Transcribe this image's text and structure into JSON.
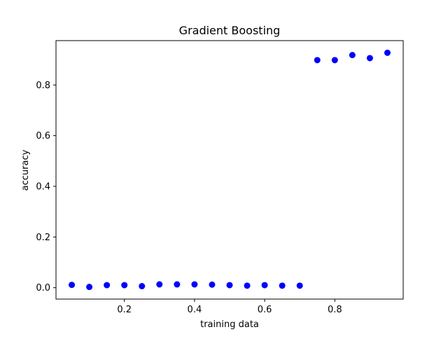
{
  "chart_data": {
    "type": "scatter",
    "title": "Gradient Boosting",
    "xlabel": "training data",
    "ylabel": "accuracy",
    "xlim": [
      0.005,
      0.995
    ],
    "ylim": [
      -0.045,
      0.975
    ],
    "grid": false,
    "xticks": [
      {
        "value": 0.2,
        "label": "0.2"
      },
      {
        "value": 0.4,
        "label": "0.4"
      },
      {
        "value": 0.6,
        "label": "0.6"
      },
      {
        "value": 0.8,
        "label": "0.8"
      }
    ],
    "yticks": [
      {
        "value": 0.0,
        "label": "0.0"
      },
      {
        "value": 0.2,
        "label": "0.2"
      },
      {
        "value": 0.4,
        "label": "0.4"
      },
      {
        "value": 0.6,
        "label": "0.6"
      },
      {
        "value": 0.8,
        "label": "0.8"
      }
    ],
    "series": [
      {
        "color": "#0000ff",
        "marker": "circle",
        "x": [
          0.05,
          0.1,
          0.15,
          0.2,
          0.25,
          0.3,
          0.35,
          0.4,
          0.45,
          0.5,
          0.55,
          0.6,
          0.65,
          0.7,
          0.75,
          0.8,
          0.85,
          0.9,
          0.95
        ],
        "y": [
          0.011,
          0.003,
          0.01,
          0.01,
          0.006,
          0.013,
          0.013,
          0.013,
          0.012,
          0.01,
          0.008,
          0.01,
          0.008,
          0.008,
          0.898,
          0.898,
          0.918,
          0.906,
          0.927
        ]
      }
    ]
  }
}
